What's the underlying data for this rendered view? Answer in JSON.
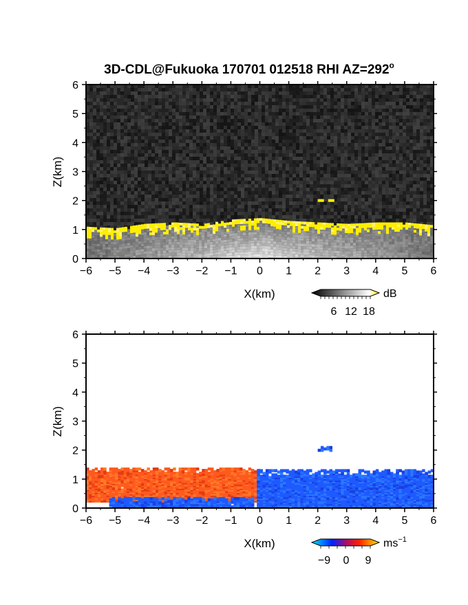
{
  "chart_data": [
    {
      "type": "heatmap",
      "title_main": "3D-CDL@Fukuoka 170701 012518 RHI AZ=292",
      "title_sup": "o",
      "xlabel": "X(km)",
      "ylabel": "Z(km)",
      "xlim": [
        -6,
        6
      ],
      "ylim": [
        0,
        6
      ],
      "xticks": [
        "−6",
        "−5",
        "−4",
        "−3",
        "−2",
        "−1",
        "0",
        "1",
        "2",
        "3",
        "4",
        "5",
        "6"
      ],
      "yticks": [
        "0",
        "1",
        "2",
        "3",
        "4",
        "5",
        "6"
      ],
      "field": "SNR",
      "background": "noise (dark gray)",
      "layer_top_km": [
        {
          "x": -6,
          "z": 1.0
        },
        {
          "x": -5,
          "z": 0.95
        },
        {
          "x": -4,
          "z": 1.1
        },
        {
          "x": -3,
          "z": 1.15
        },
        {
          "x": -2,
          "z": 1.1
        },
        {
          "x": -1,
          "z": 1.25
        },
        {
          "x": 0,
          "z": 1.3
        },
        {
          "x": 1,
          "z": 1.2
        },
        {
          "x": 2,
          "z": 1.15
        },
        {
          "x": 3,
          "z": 1.1
        },
        {
          "x": 4,
          "z": 1.15
        },
        {
          "x": 5,
          "z": 1.15
        },
        {
          "x": 6,
          "z": 1.05
        }
      ],
      "isolated_echo": {
        "x": [
          2.0,
          2.5
        ],
        "z": 2.0
      },
      "colorbar": {
        "unit": "dB",
        "tick_labels": [
          "6",
          "12",
          "18"
        ],
        "colors": [
          "#000000",
          "#ffffff",
          "#ffea00"
        ]
      }
    },
    {
      "type": "heatmap",
      "xlabel": "X(km)",
      "ylabel": "Z(km)",
      "xlim": [
        -6,
        6
      ],
      "ylim": [
        0,
        6
      ],
      "xticks": [
        "−6",
        "−5",
        "−4",
        "−3",
        "−2",
        "−1",
        "0",
        "1",
        "2",
        "3",
        "4",
        "5",
        "6"
      ],
      "yticks": [
        "0",
        "1",
        "2",
        "3",
        "4",
        "5",
        "6"
      ],
      "field": "radial velocity",
      "regions": [
        {
          "x": [
            -6,
            -0.1
          ],
          "z": [
            0.2,
            1.35
          ],
          "sign": "positive",
          "color": "#ff5a1e"
        },
        {
          "x": [
            -5.8,
            -5.0
          ],
          "z": [
            0.8,
            1.05
          ],
          "sign": "positive",
          "color": "#ff7a1e"
        },
        {
          "x": [
            -0.1,
            6
          ],
          "z": [
            0.0,
            1.25
          ],
          "sign": "negative",
          "color": "#1e5aff"
        },
        {
          "x": [
            -5.2,
            -0.3
          ],
          "z": [
            0.0,
            0.3
          ],
          "sign": "negative",
          "color": "#1e5aff"
        },
        {
          "x": [
            2.0,
            2.5
          ],
          "z": [
            1.95,
            2.05
          ],
          "sign": "negative",
          "color": "#1e5aff"
        }
      ],
      "colorbar": {
        "unit": "ms",
        "unit_sup": "−1",
        "tick_labels": [
          "−9",
          "0",
          "9"
        ],
        "colors": [
          "#00e5ff",
          "#0022ff",
          "#ff0000",
          "#ffea00"
        ]
      }
    }
  ]
}
